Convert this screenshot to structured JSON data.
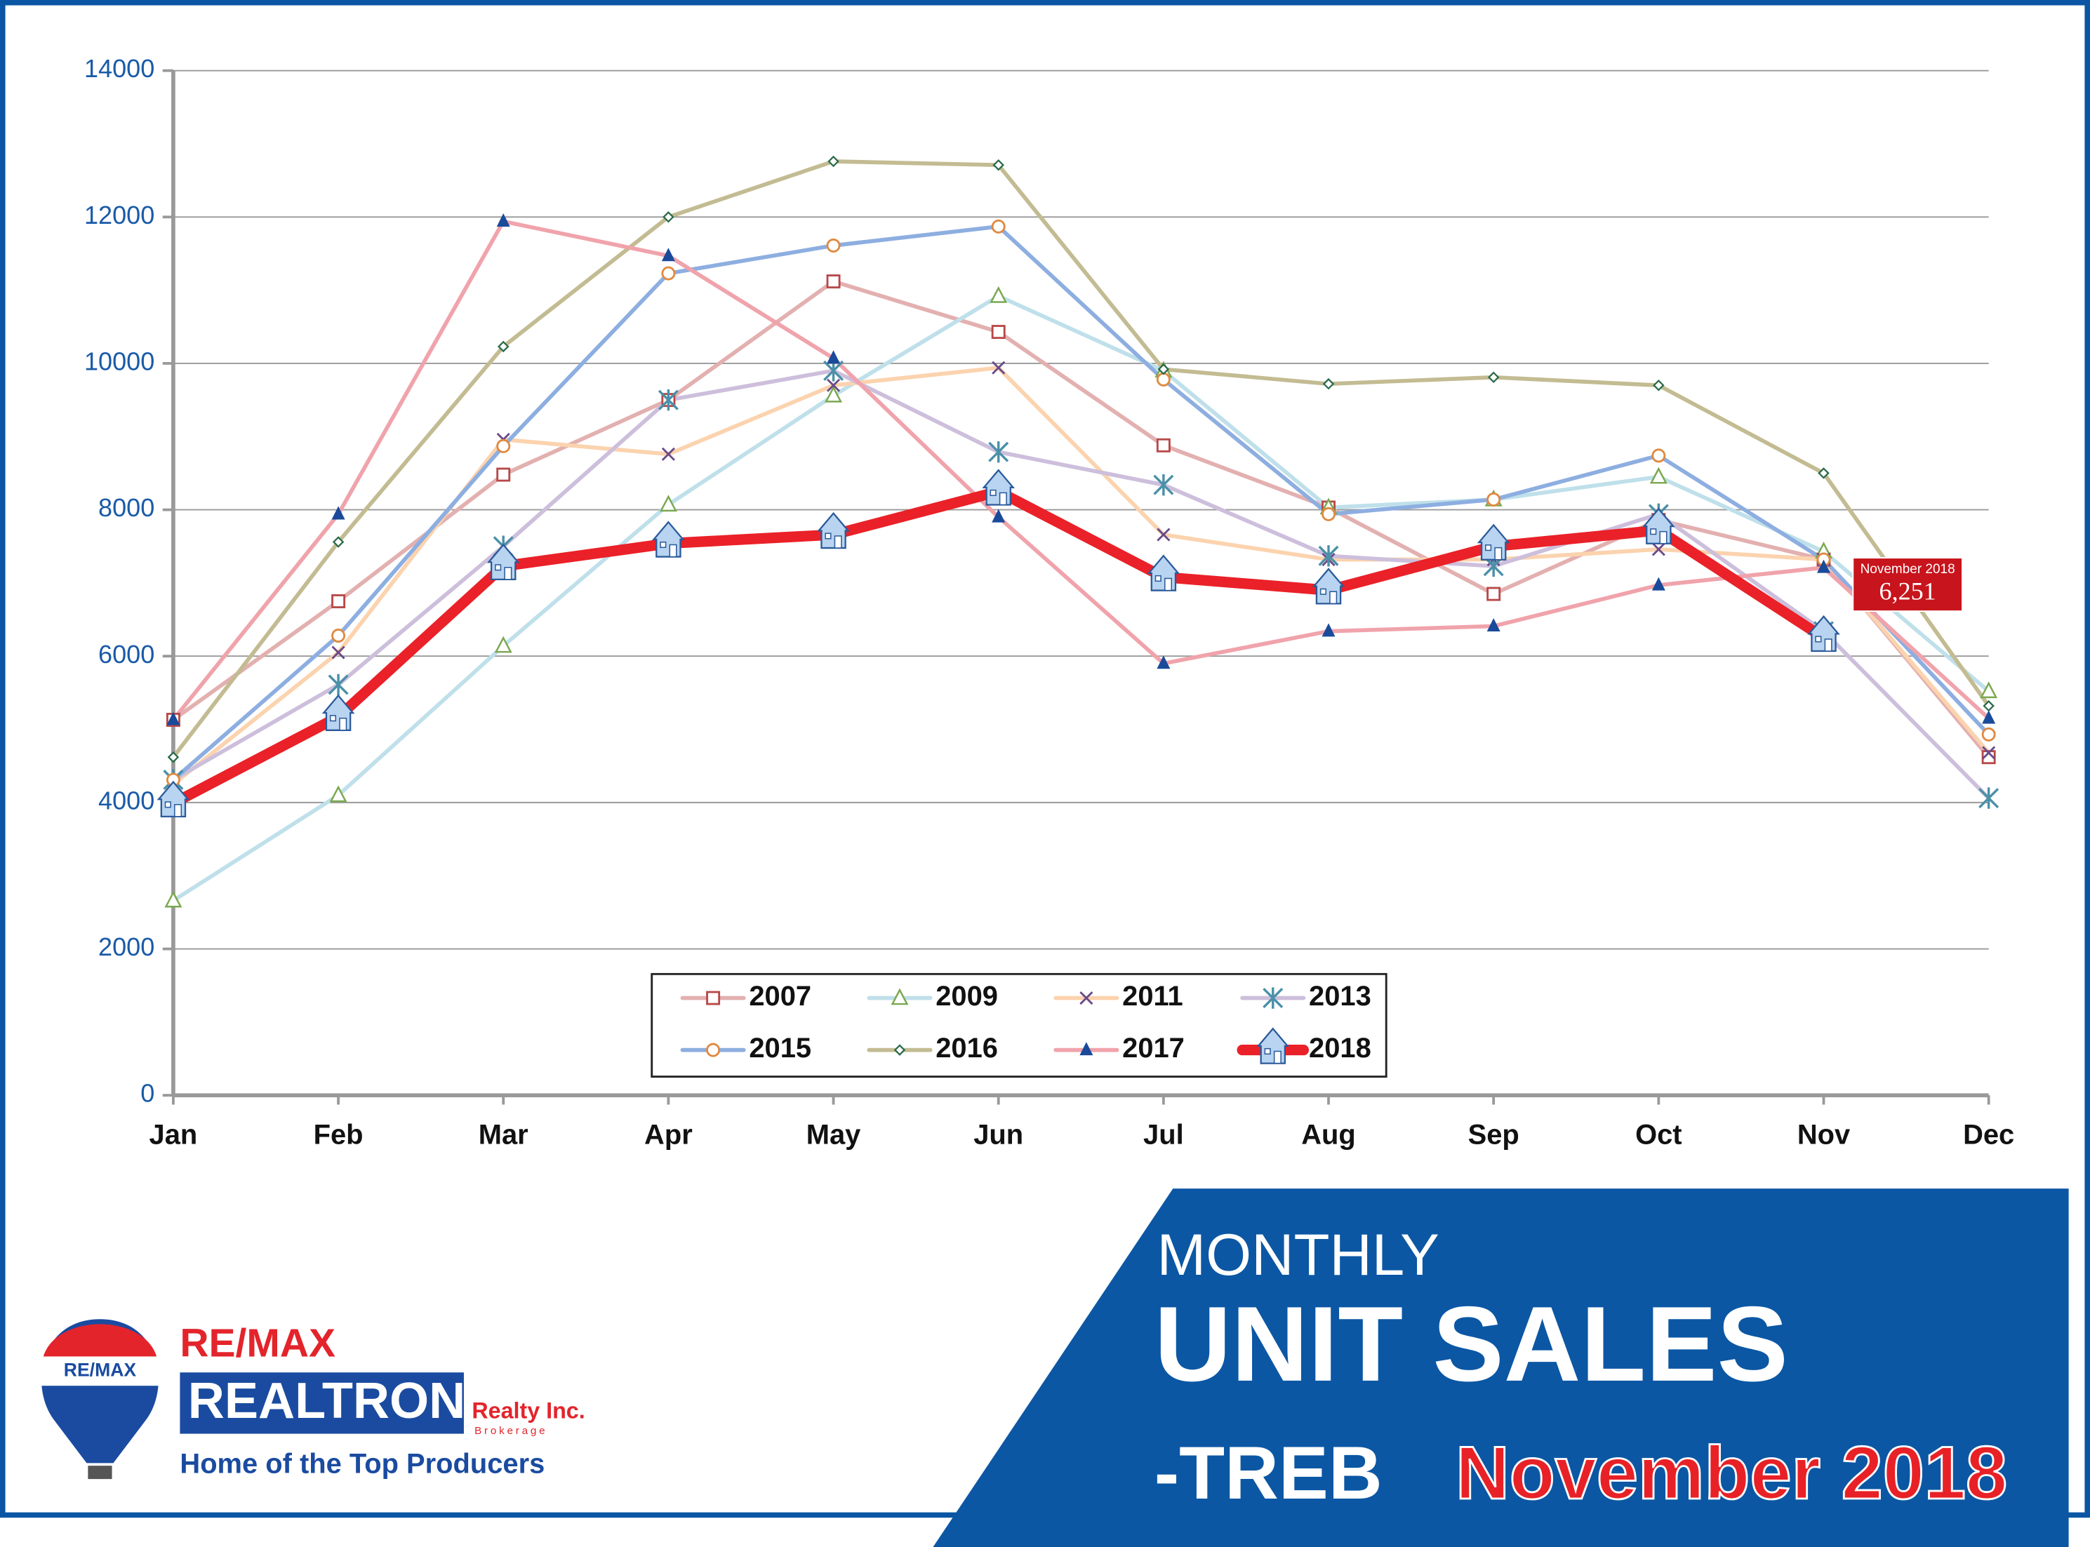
{
  "chart_data": {
    "type": "line",
    "categories": [
      "Jan",
      "Feb",
      "Mar",
      "Apr",
      "May",
      "Jun",
      "Jul",
      "Aug",
      "Sep",
      "Oct",
      "Nov",
      "Dec"
    ],
    "ylim": [
      0,
      14000
    ],
    "yticks": [
      0,
      2000,
      4000,
      6000,
      8000,
      10000,
      12000,
      14000
    ],
    "grid": true,
    "series": [
      {
        "name": "2007",
        "color": "#e3b0b0",
        "marker": "square",
        "marker_color": "#b84848",
        "values": [
          5130,
          6750,
          8480,
          9500,
          11120,
          10430,
          8880,
          8030,
          6850,
          7860,
          7320,
          4620
        ]
      },
      {
        "name": "2009",
        "color": "#bfe0ea",
        "marker": "triangle-open",
        "marker_color": "#7aa850",
        "values": [
          2660,
          4100,
          6140,
          8070,
          9560,
          10920,
          9900,
          8030,
          8140,
          8450,
          7430,
          5520
        ]
      },
      {
        "name": "2011",
        "color": "#fbd3ae",
        "marker": "x",
        "marker_color": "#6a4a8a",
        "values": [
          4250,
          6050,
          8960,
          8760,
          9700,
          9940,
          7660,
          7320,
          7320,
          7460,
          7320,
          4680
        ]
      },
      {
        "name": "2013",
        "color": "#cdbfdc",
        "marker": "asterisk",
        "marker_color": "#4a90a8",
        "values": [
          4310,
          5610,
          7500,
          9500,
          9900,
          8790,
          8340,
          7370,
          7230,
          7940,
          6340,
          4060
        ]
      },
      {
        "name": "2015",
        "color": "#8daee0",
        "marker": "circle",
        "marker_color": "#e08a40",
        "values": [
          4310,
          6280,
          8870,
          11230,
          11610,
          11870,
          9780,
          7940,
          8140,
          8740,
          7320,
          4930
        ]
      },
      {
        "name": "2016",
        "color": "#c3bb92",
        "marker": "diamond",
        "marker_color": "#2a6a4a",
        "values": [
          4620,
          7560,
          10230,
          12000,
          12760,
          12710,
          9920,
          9720,
          9810,
          9700,
          8500,
          5320
        ]
      },
      {
        "name": "2017",
        "color": "#f0a3ab",
        "marker": "triangle",
        "marker_color": "#1a4a9a",
        "values": [
          5130,
          7940,
          11940,
          11470,
          10070,
          7900,
          5900,
          6340,
          6410,
          6970,
          7210,
          5150
        ]
      },
      {
        "name": "2018",
        "color": "#ea2128",
        "marker": "house",
        "marker_color": "#3a6ab0",
        "values": [
          3990,
          5170,
          7230,
          7540,
          7660,
          8250,
          7080,
          6900,
          7500,
          7720,
          6251,
          null
        ],
        "value_labels": [
          null,
          null,
          null,
          null,
          null,
          null,
          null,
          null,
          null,
          null,
          "6,251",
          null
        ]
      }
    ],
    "annotation": "November 2018",
    "legend": "bottom-center"
  },
  "banner": {
    "line1": "MONTHLY",
    "line2": "UNIT SALES",
    "line3": "-TREB",
    "line3_highlight": "November 2018"
  },
  "logo": {
    "balloon": "RE/MAX",
    "brand": "RE/MAX",
    "name": "REALTRON",
    "suffix": "Realty Inc.",
    "sub": "Brokerage",
    "tagline": "Home of the Top Producers"
  }
}
